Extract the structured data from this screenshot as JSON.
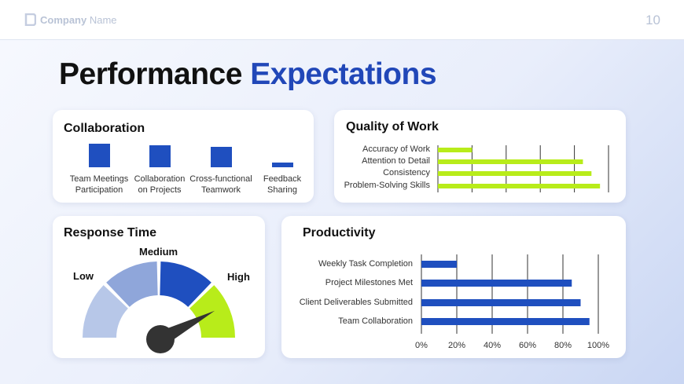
{
  "header": {
    "company_bold": "Company",
    "company_rest": " Name",
    "page_number": "10"
  },
  "title": {
    "main": "Performance",
    "accent": "Expectations"
  },
  "collaboration": {
    "title": "Collaboration",
    "chart_data": {
      "type": "bar",
      "categories": [
        "Team Meetings Participation",
        "Collaboration on Projects",
        "Cross-functional Teamwork",
        "Feedback Sharing"
      ],
      "label_lines": [
        [
          "Team Meetings",
          "Participation"
        ],
        [
          "Collaboration",
          "on Projects"
        ],
        [
          "Cross-functional",
          "Teamwork"
        ],
        [
          "Feedback",
          "Sharing"
        ]
      ],
      "values": [
        28,
        26,
        24,
        6
      ],
      "color": "#1f4fbf"
    }
  },
  "quality": {
    "title": "Quality of Work",
    "chart_data": {
      "type": "bar",
      "orientation": "horizontal",
      "categories": [
        "Accuracy of Work",
        "Attention to Detail",
        "Consistency",
        "Problem-Solving Skills"
      ],
      "values": [
        0.2,
        0.85,
        0.9,
        0.95
      ],
      "xlim": [
        0,
        1
      ],
      "gridlines": [
        0,
        0.2,
        0.4,
        0.6,
        0.8,
        1.0
      ],
      "color": "#b8ec1a"
    }
  },
  "response_time": {
    "title": "Response Time",
    "labels": {
      "low": "Low",
      "medium": "Medium",
      "high": "High"
    },
    "chart_data": {
      "type": "gauge",
      "segments": [
        "Low",
        "Medium",
        "Medium",
        "High"
      ],
      "colors": [
        "#b7c7e8",
        "#8fa6da",
        "#1f4fbf",
        "#b8ec1a"
      ],
      "needle_value": 0.92,
      "needle_color": "#333333"
    }
  },
  "productivity": {
    "title": "Productivity",
    "chart_data": {
      "type": "bar",
      "orientation": "horizontal",
      "categories": [
        "Weekly Task Completion",
        "Project Milestones Met",
        "Client Deliverables Submitted",
        "Team Collaboration"
      ],
      "values": [
        20,
        85,
        90,
        95
      ],
      "xlim": [
        0,
        100
      ],
      "ticks": [
        "0%",
        "20%",
        "40%",
        "60%",
        "80%",
        "100%"
      ],
      "tick_values": [
        0,
        20,
        40,
        60,
        80,
        100
      ],
      "color": "#1f4fbf"
    }
  }
}
